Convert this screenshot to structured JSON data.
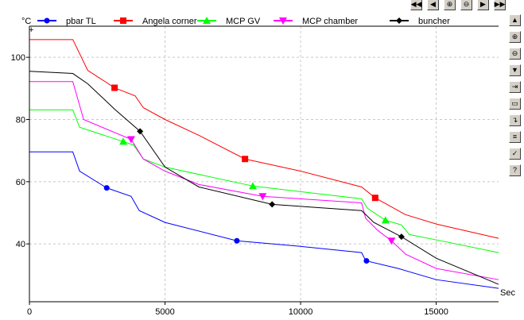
{
  "toolbar_top": [
    {
      "name": "first-page-button",
      "icon": "double-left-arrow-icon",
      "glyph": "◀◀"
    },
    {
      "name": "prev-page-button",
      "icon": "left-arrow-icon",
      "glyph": "◀"
    },
    {
      "name": "zoom-in-button",
      "icon": "zoom-in-icon",
      "glyph": "⊕"
    },
    {
      "name": "zoom-out-button",
      "icon": "zoom-out-icon",
      "glyph": "⊖"
    },
    {
      "name": "next-page-button",
      "icon": "right-arrow-icon",
      "glyph": "▶"
    },
    {
      "name": "last-page-button",
      "icon": "double-right-arrow-icon",
      "glyph": "▶▶"
    }
  ],
  "toolbar_side": [
    {
      "name": "scroll-up-button",
      "icon": "up-arrow-icon",
      "glyph": "▲"
    },
    {
      "name": "zoom-in-button",
      "icon": "zoom-in-icon",
      "glyph": "⊕"
    },
    {
      "name": "zoom-out-button",
      "icon": "zoom-out-icon",
      "glyph": "⊖"
    },
    {
      "name": "scroll-down-button",
      "icon": "down-arrow-icon",
      "glyph": "▼"
    },
    {
      "name": "export-button",
      "icon": "export-icon",
      "glyph": "⇥"
    },
    {
      "name": "save-button",
      "icon": "save-icon",
      "glyph": "▭"
    },
    {
      "name": "copy-button",
      "icon": "copy-icon",
      "glyph": "↴"
    },
    {
      "name": "series-colors-button",
      "icon": "colors-icon",
      "glyph": "≡"
    },
    {
      "name": "apply-button",
      "icon": "check-icon",
      "glyph": "✓"
    },
    {
      "name": "help-button",
      "icon": "help-icon",
      "glyph": "?"
    }
  ],
  "chart_data": {
    "type": "line",
    "title": "",
    "xlabel": "Sec",
    "ylabel": "°C",
    "xlim": [
      0,
      17300
    ],
    "ylim": [
      21.4,
      110
    ],
    "xticks": [
      0,
      5000,
      10000,
      15000
    ],
    "yticks": [
      40,
      60,
      80,
      100
    ],
    "grid": true,
    "legend_position": "top",
    "series": [
      {
        "name": "pbar TL",
        "color": "#0000ff",
        "marker": "circle",
        "x": [
          0,
          1600,
          1850,
          2850,
          3750,
          4050,
          5000,
          7650,
          10000,
          12250,
          12400,
          13600,
          15000,
          17300
        ],
        "y": [
          69.6,
          69.6,
          63.4,
          58.0,
          55.3,
          50.7,
          46.9,
          41.0,
          39.2,
          37.2,
          34.6,
          32.1,
          28.5,
          25.7
        ],
        "markers": [
          2850,
          7650,
          12430
        ]
      },
      {
        "name": "Angela corner",
        "color": "#ff0000",
        "marker": "square",
        "x": [
          0,
          1600,
          2150,
          3140,
          3900,
          4200,
          5000,
          6250,
          7950,
          10000,
          12250,
          12750,
          13870,
          15000,
          17300
        ],
        "y": [
          105.7,
          105.7,
          95.8,
          90.2,
          87.6,
          83.8,
          80.0,
          74.9,
          67.3,
          63.4,
          58.3,
          54.8,
          49.4,
          46.4,
          41.8
        ],
        "markers": [
          3140,
          7950,
          12750
        ]
      },
      {
        "name": "MCP GV",
        "color": "#00ff00",
        "marker": "triangle-up",
        "x": [
          0,
          1600,
          1850,
          3460,
          3840,
          4200,
          5000,
          8240,
          12250,
          12460,
          13130,
          13720,
          14010,
          15000,
          17300
        ],
        "y": [
          83.1,
          83.1,
          77.5,
          72.9,
          71.8,
          67.3,
          64.7,
          58.6,
          54.5,
          51.5,
          47.6,
          46.1,
          43.0,
          41.3,
          37.2
        ],
        "markers": [
          3460,
          8240,
          13130
        ]
      },
      {
        "name": "MCP chamber",
        "color": "#ff00ff",
        "marker": "triangle-down",
        "x": [
          0,
          1600,
          2000,
          3750,
          4200,
          5000,
          6250,
          8600,
          12250,
          12400,
          12850,
          13350,
          13870,
          15000,
          17300
        ],
        "y": [
          92.2,
          92.2,
          80.0,
          73.6,
          67.3,
          63.4,
          59.1,
          55.3,
          53.2,
          48.2,
          44.3,
          41.0,
          36.7,
          32.1,
          28.5
        ],
        "markers": [
          3750,
          8600,
          13350
        ]
      },
      {
        "name": "buncher",
        "color": "#000000",
        "marker": "diamond",
        "x": [
          0,
          1600,
          2150,
          3170,
          4080,
          5000,
          6250,
          8950,
          12250,
          12700,
          13720,
          15000,
          17300
        ],
        "y": [
          95.5,
          94.8,
          91.5,
          83.1,
          76.2,
          64.7,
          58.3,
          52.7,
          50.7,
          46.9,
          42.3,
          35.4,
          27.0
        ],
        "markers": [
          4080,
          8950,
          13720
        ]
      }
    ]
  }
}
